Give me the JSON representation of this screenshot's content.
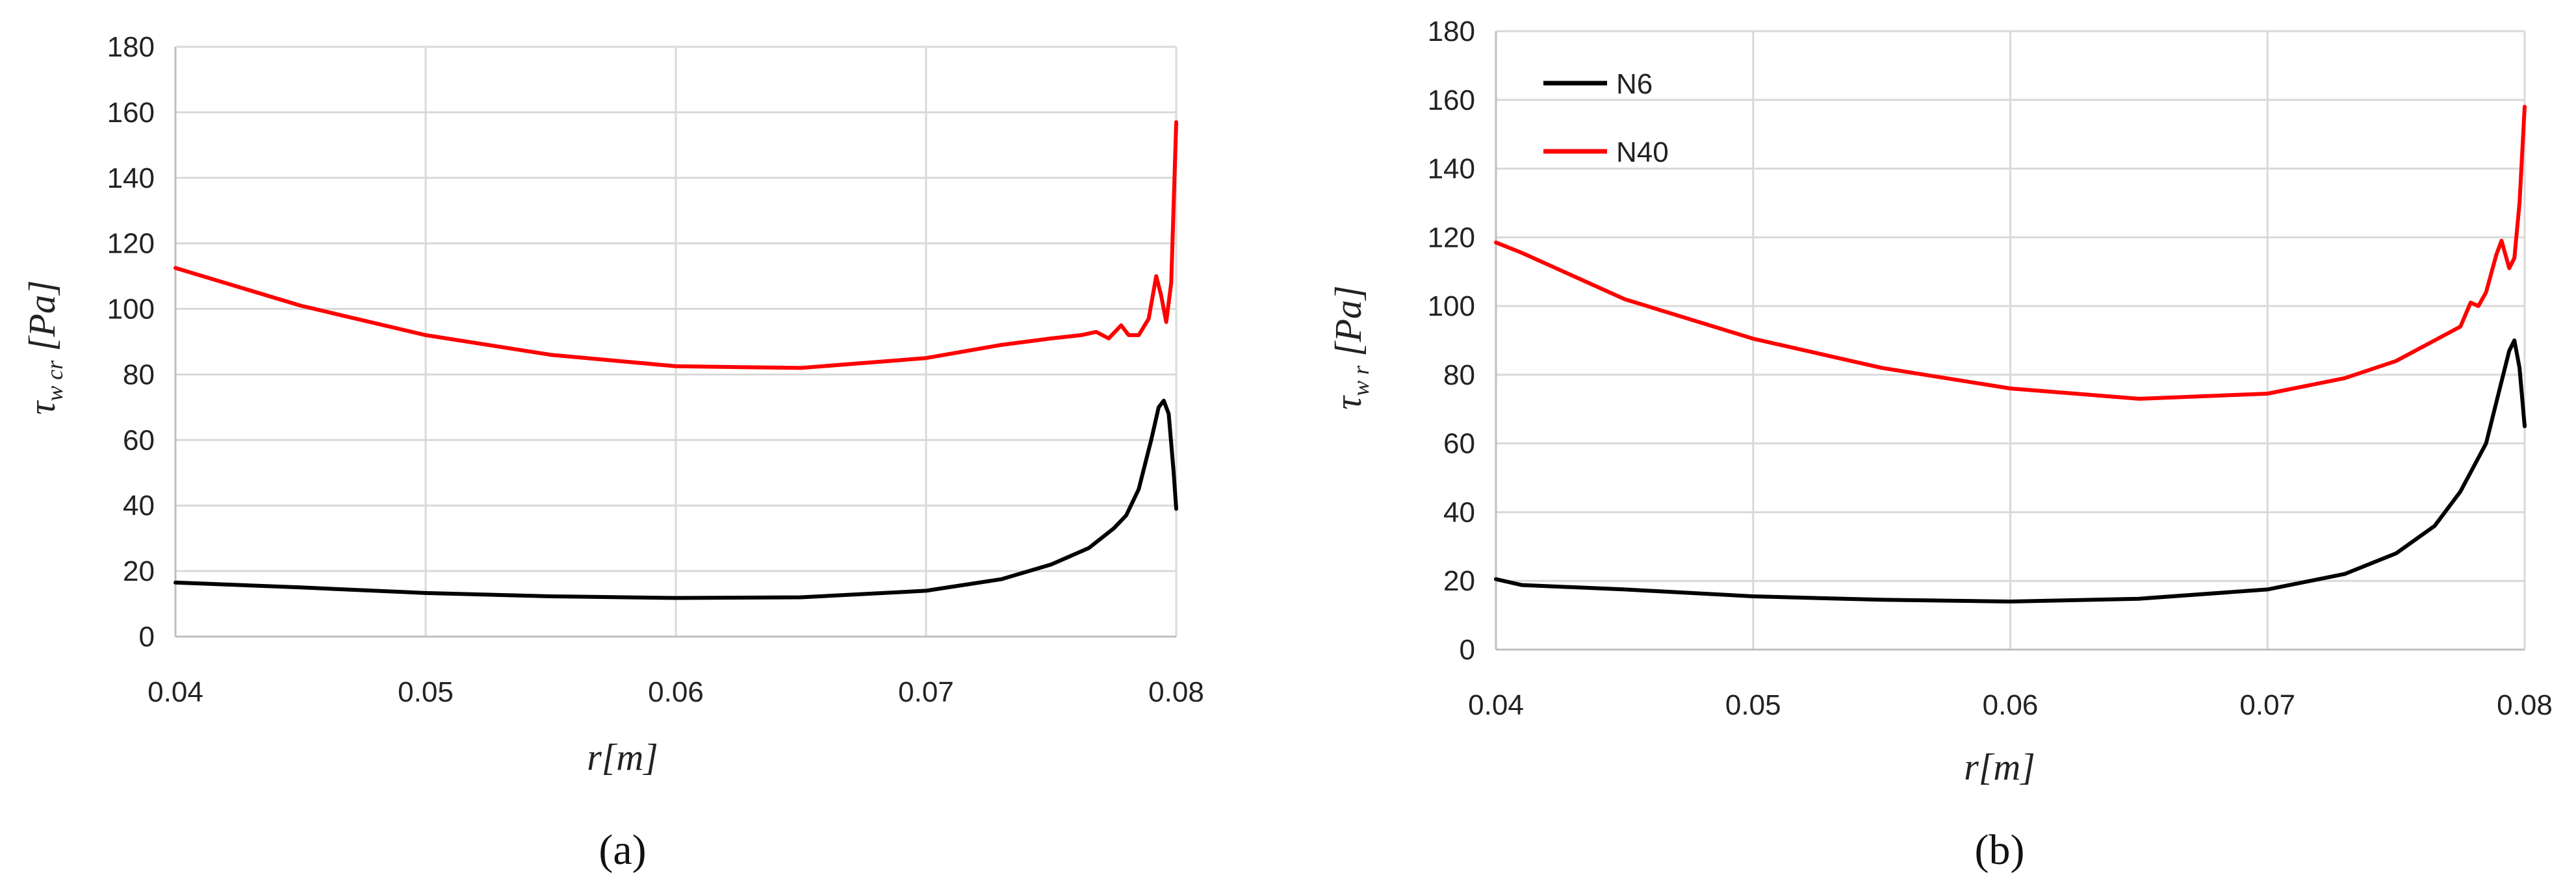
{
  "chart_data": [
    {
      "type": "line",
      "panel_label": "(a)",
      "xlabel": "r[m]",
      "ylabel_symbol": "τ",
      "ylabel_subscript": "w cr",
      "ylabel_unit": "[Pa]",
      "xlim": [
        0.04,
        0.08
      ],
      "ylim": [
        0,
        180
      ],
      "x_ticks": [
        0.04,
        0.05,
        0.06,
        0.07,
        0.08
      ],
      "x_tick_labels": [
        "0.04",
        "0.05",
        "0.06",
        "0.07",
        "0.08"
      ],
      "y_ticks": [
        0,
        20,
        40,
        60,
        80,
        100,
        120,
        140,
        160,
        180
      ],
      "y_tick_labels": [
        "0",
        "20",
        "40",
        "60",
        "80",
        "100",
        "120",
        "140",
        "160",
        "180"
      ],
      "grid": true,
      "legend": false,
      "series": [
        {
          "name": "N6",
          "color": "#000000",
          "points": [
            [
              0.04,
              16.5
            ],
            [
              0.045,
              15
            ],
            [
              0.05,
              13.3
            ],
            [
              0.055,
              12.3
            ],
            [
              0.06,
              11.8
            ],
            [
              0.065,
              12
            ],
            [
              0.07,
              14
            ],
            [
              0.073,
              17.5
            ],
            [
              0.075,
              22
            ],
            [
              0.0765,
              27
            ],
            [
              0.0775,
              33
            ],
            [
              0.078,
              37
            ],
            [
              0.0785,
              45
            ],
            [
              0.079,
              60
            ],
            [
              0.0793,
              70
            ],
            [
              0.0795,
              72
            ],
            [
              0.0797,
              68
            ],
            [
              0.0799,
              50
            ],
            [
              0.08,
              39
            ]
          ]
        },
        {
          "name": "N40",
          "color": "#ff0000",
          "points": [
            [
              0.04,
              112.5
            ],
            [
              0.045,
              101
            ],
            [
              0.05,
              92
            ],
            [
              0.055,
              86
            ],
            [
              0.06,
              82.5
            ],
            [
              0.065,
              82
            ],
            [
              0.07,
              85
            ],
            [
              0.073,
              89
            ],
            [
              0.075,
              91
            ],
            [
              0.0762,
              92
            ],
            [
              0.0768,
              93
            ],
            [
              0.0773,
              91
            ],
            [
              0.0778,
              95
            ],
            [
              0.0781,
              92
            ],
            [
              0.0785,
              92
            ],
            [
              0.0789,
              97
            ],
            [
              0.0792,
              110
            ],
            [
              0.0794,
              104
            ],
            [
              0.0796,
              96
            ],
            [
              0.0798,
              108
            ],
            [
              0.08,
              157
            ]
          ]
        }
      ]
    },
    {
      "type": "line",
      "panel_label": "(b)",
      "xlabel": "r[m]",
      "ylabel_symbol": "τ",
      "ylabel_subscript": "w r",
      "ylabel_unit": "[Pa]",
      "xlim": [
        0.04,
        0.08
      ],
      "ylim": [
        0,
        180
      ],
      "x_ticks": [
        0.04,
        0.05,
        0.06,
        0.07,
        0.08
      ],
      "x_tick_labels": [
        "0.04",
        "0.05",
        "0.06",
        "0.07",
        "0.08"
      ],
      "y_ticks": [
        0,
        20,
        40,
        60,
        80,
        100,
        120,
        140,
        160,
        180
      ],
      "y_tick_labels": [
        "0",
        "20",
        "40",
        "60",
        "80",
        "100",
        "120",
        "140",
        "160",
        "180"
      ],
      "grid": true,
      "legend": true,
      "legend_position": "top-left",
      "series": [
        {
          "name": "N6",
          "color": "#000000",
          "points": [
            [
              0.04,
              20.5
            ],
            [
              0.041,
              18.8
            ],
            [
              0.045,
              17.5
            ],
            [
              0.05,
              15.5
            ],
            [
              0.055,
              14.5
            ],
            [
              0.06,
              14
            ],
            [
              0.065,
              14.8
            ],
            [
              0.07,
              17.5
            ],
            [
              0.073,
              22
            ],
            [
              0.075,
              28
            ],
            [
              0.0765,
              36
            ],
            [
              0.0775,
              46
            ],
            [
              0.0785,
              60
            ],
            [
              0.079,
              75
            ],
            [
              0.0794,
              87
            ],
            [
              0.0796,
              90
            ],
            [
              0.0798,
              82
            ],
            [
              0.08,
              65
            ]
          ]
        },
        {
          "name": "N40",
          "color": "#ff0000",
          "points": [
            [
              0.04,
              118.5
            ],
            [
              0.041,
              115.5
            ],
            [
              0.045,
              102
            ],
            [
              0.05,
              90.5
            ],
            [
              0.055,
              82
            ],
            [
              0.06,
              76
            ],
            [
              0.065,
              73
            ],
            [
              0.07,
              74.5
            ],
            [
              0.073,
              79
            ],
            [
              0.075,
              84
            ],
            [
              0.0765,
              90
            ],
            [
              0.0775,
              94
            ],
            [
              0.0779,
              101
            ],
            [
              0.0782,
              100
            ],
            [
              0.0785,
              104
            ],
            [
              0.0789,
              115
            ],
            [
              0.0791,
              119
            ],
            [
              0.0794,
              111
            ],
            [
              0.0796,
              114
            ],
            [
              0.0798,
              130
            ],
            [
              0.08,
              158
            ]
          ]
        }
      ]
    }
  ]
}
